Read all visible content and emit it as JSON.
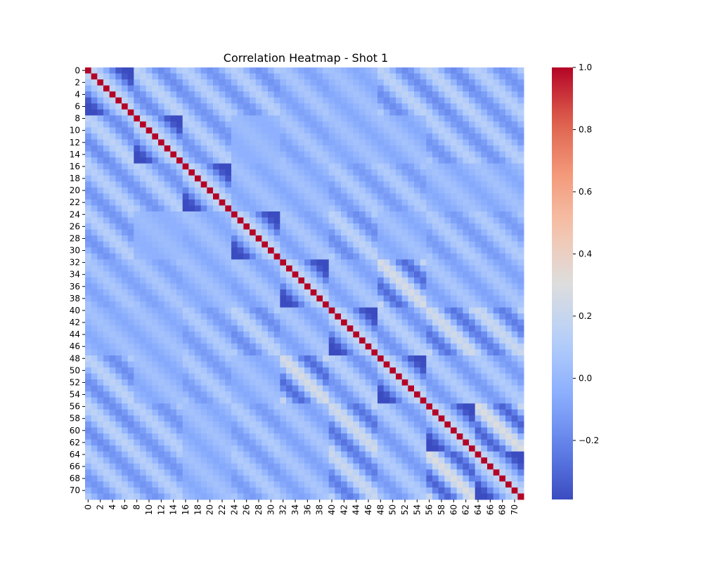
{
  "chart_data": {
    "type": "heatmap",
    "title": "Correlation Heatmap - Shot 1",
    "xlabel": "",
    "ylabel": "",
    "size": 72,
    "block_size": 8,
    "tick_labels": [
      "0",
      "2",
      "4",
      "6",
      "8",
      "10",
      "12",
      "14",
      "16",
      "18",
      "20",
      "22",
      "24",
      "26",
      "28",
      "30",
      "32",
      "34",
      "36",
      "38",
      "40",
      "42",
      "44",
      "46",
      "48",
      "50",
      "52",
      "54",
      "56",
      "58",
      "60",
      "62",
      "64",
      "66",
      "68",
      "70"
    ],
    "tick_step": 2,
    "colormap": "coolwarm",
    "value_range": [
      -0.39,
      1.0
    ],
    "colorbar_ticks": [
      "1.0",
      "0.8",
      "0.6",
      "0.4",
      "0.2",
      "0.0",
      "−0.2"
    ],
    "colorbar_tick_values": [
      1.0,
      0.8,
      0.6,
      0.4,
      0.2,
      0.0,
      -0.2
    ],
    "grid": false,
    "diagonal_value": 1.0,
    "diagonal_in_block_value": -0.35,
    "block_pair_strength": [
      [
        0.0,
        0.25,
        0.2,
        0.2,
        0.1,
        0.05,
        0.25,
        0.25,
        0.2
      ],
      [
        0.25,
        0.0,
        0.2,
        0.0,
        0.1,
        0.05,
        0.05,
        0.2,
        0.2
      ],
      [
        0.2,
        0.2,
        0.0,
        0.05,
        0.05,
        0.15,
        0.15,
        0.05,
        0.05
      ],
      [
        0.2,
        0.0,
        0.05,
        0.0,
        0.1,
        0.25,
        0.05,
        0.15,
        0.15
      ],
      [
        0.1,
        0.1,
        0.05,
        0.1,
        0.0,
        0.1,
        0.45,
        0.1,
        0.1
      ],
      [
        0.05,
        0.05,
        0.15,
        0.25,
        0.1,
        0.0,
        0.2,
        0.4,
        0.35
      ],
      [
        0.25,
        0.05,
        0.15,
        0.05,
        0.45,
        0.2,
        0.0,
        0.15,
        0.15
      ],
      [
        0.25,
        0.2,
        0.05,
        0.15,
        0.1,
        0.4,
        0.15,
        0.0,
        0.5
      ],
      [
        0.2,
        0.2,
        0.05,
        0.15,
        0.1,
        0.35,
        0.15,
        0.5,
        0.0
      ]
    ]
  }
}
